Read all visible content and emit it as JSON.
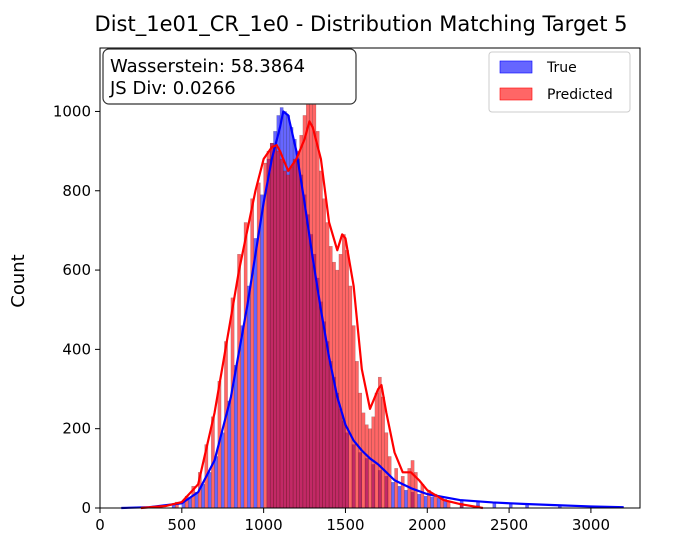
{
  "chart_data": {
    "type": "bar",
    "subtype": "overlaid histogram with KDE curves",
    "title": "Dist_1e01_CR_1e0 - Distribution Matching Target 5",
    "xlabel": "",
    "ylabel": "Count",
    "xlim": [
      0,
      3300
    ],
    "ylim": [
      0,
      1160
    ],
    "xticks": [
      0,
      500,
      1000,
      1500,
      2000,
      2500,
      3000
    ],
    "yticks": [
      0,
      200,
      400,
      600,
      800,
      1000
    ],
    "grid": false,
    "legend_position": "top-right",
    "annotation": {
      "lines": [
        "Wasserstein: 58.3864",
        "JS Div: 0.0266"
      ]
    },
    "series": [
      {
        "name": "True",
        "color": "#0000ff",
        "bin_width": 20,
        "bins": [
          [
            240,
            2
          ],
          [
            340,
            3
          ],
          [
            440,
            8
          ],
          [
            500,
            15
          ],
          [
            540,
            25
          ],
          [
            580,
            40
          ],
          [
            620,
            60
          ],
          [
            660,
            90
          ],
          [
            700,
            130
          ],
          [
            740,
            190
          ],
          [
            780,
            270
          ],
          [
            820,
            360
          ],
          [
            860,
            460
          ],
          [
            900,
            560
          ],
          [
            940,
            680
          ],
          [
            980,
            790
          ],
          [
            1020,
            880
          ],
          [
            1040,
            920
          ],
          [
            1060,
            950
          ],
          [
            1080,
            990
          ],
          [
            1100,
            1010
          ],
          [
            1120,
            1000
          ],
          [
            1140,
            990
          ],
          [
            1160,
            960
          ],
          [
            1180,
            930
          ],
          [
            1200,
            880
          ],
          [
            1220,
            840
          ],
          [
            1240,
            790
          ],
          [
            1260,
            740
          ],
          [
            1280,
            690
          ],
          [
            1300,
            640
          ],
          [
            1320,
            580
          ],
          [
            1340,
            520
          ],
          [
            1360,
            470
          ],
          [
            1380,
            420
          ],
          [
            1400,
            370
          ],
          [
            1420,
            330
          ],
          [
            1440,
            290
          ],
          [
            1460,
            250
          ],
          [
            1480,
            220
          ],
          [
            1500,
            190
          ],
          [
            1540,
            160
          ],
          [
            1580,
            140
          ],
          [
            1620,
            125
          ],
          [
            1660,
            110
          ],
          [
            1700,
            95
          ],
          [
            1740,
            80
          ],
          [
            1780,
            65
          ],
          [
            1820,
            55
          ],
          [
            1860,
            45
          ],
          [
            1900,
            40
          ],
          [
            1940,
            35
          ],
          [
            1980,
            30
          ],
          [
            2020,
            28
          ],
          [
            2060,
            25
          ],
          [
            2100,
            22
          ],
          [
            2200,
            18
          ],
          [
            2300,
            15
          ],
          [
            2400,
            12
          ],
          [
            2500,
            10
          ],
          [
            2600,
            8
          ],
          [
            2800,
            6
          ],
          [
            3000,
            4
          ],
          [
            3180,
            3
          ]
        ],
        "kde": [
          [
            130,
            0
          ],
          [
            300,
            2
          ],
          [
            500,
            12
          ],
          [
            600,
            40
          ],
          [
            700,
            120
          ],
          [
            800,
            280
          ],
          [
            900,
            510
          ],
          [
            1000,
            770
          ],
          [
            1050,
            880
          ],
          [
            1100,
            960
          ],
          [
            1120,
            1000
          ],
          [
            1150,
            990
          ],
          [
            1200,
            900
          ],
          [
            1250,
            770
          ],
          [
            1300,
            630
          ],
          [
            1350,
            500
          ],
          [
            1400,
            380
          ],
          [
            1450,
            280
          ],
          [
            1500,
            210
          ],
          [
            1550,
            170
          ],
          [
            1600,
            145
          ],
          [
            1650,
            125
          ],
          [
            1700,
            110
          ],
          [
            1750,
            90
          ],
          [
            1800,
            70
          ],
          [
            1900,
            50
          ],
          [
            2000,
            35
          ],
          [
            2200,
            20
          ],
          [
            2400,
            14
          ],
          [
            2600,
            10
          ],
          [
            2800,
            7
          ],
          [
            3000,
            4
          ],
          [
            3200,
            2
          ]
        ]
      },
      {
        "name": "Predicted",
        "color": "#ff0000",
        "bin_width": 20,
        "bins": [
          [
            240,
            2
          ],
          [
            360,
            5
          ],
          [
            460,
            15
          ],
          [
            520,
            30
          ],
          [
            560,
            55
          ],
          [
            600,
            90
          ],
          [
            640,
            160
          ],
          [
            680,
            230
          ],
          [
            720,
            320
          ],
          [
            760,
            420
          ],
          [
            800,
            530
          ],
          [
            840,
            640
          ],
          [
            880,
            720
          ],
          [
            920,
            780
          ],
          [
            960,
            820
          ],
          [
            1000,
            870
          ],
          [
            1020,
            900
          ],
          [
            1040,
            920
          ],
          [
            1060,
            910
          ],
          [
            1080,
            900
          ],
          [
            1100,
            880
          ],
          [
            1120,
            850
          ],
          [
            1140,
            840
          ],
          [
            1160,
            860
          ],
          [
            1180,
            880
          ],
          [
            1200,
            900
          ],
          [
            1220,
            940
          ],
          [
            1240,
            990
          ],
          [
            1260,
            1060
          ],
          [
            1280,
            1100
          ],
          [
            1300,
            1040
          ],
          [
            1320,
            950
          ],
          [
            1340,
            850
          ],
          [
            1360,
            780
          ],
          [
            1380,
            720
          ],
          [
            1400,
            660
          ],
          [
            1420,
            620
          ],
          [
            1440,
            600
          ],
          [
            1460,
            640
          ],
          [
            1480,
            690
          ],
          [
            1500,
            650
          ],
          [
            1520,
            560
          ],
          [
            1540,
            460
          ],
          [
            1560,
            370
          ],
          [
            1580,
            290
          ],
          [
            1600,
            240
          ],
          [
            1620,
            210
          ],
          [
            1640,
            200
          ],
          [
            1660,
            230
          ],
          [
            1680,
            290
          ],
          [
            1700,
            330
          ],
          [
            1720,
            280
          ],
          [
            1740,
            190
          ],
          [
            1760,
            130
          ],
          [
            1800,
            100
          ],
          [
            1840,
            80
          ],
          [
            1880,
            100
          ],
          [
            1900,
            120
          ],
          [
            1920,
            90
          ],
          [
            1960,
            60
          ],
          [
            2000,
            45
          ],
          [
            2040,
            35
          ],
          [
            2080,
            25
          ],
          [
            2120,
            18
          ],
          [
            2200,
            12
          ],
          [
            2300,
            6
          ]
        ],
        "kde": [
          [
            250,
            0
          ],
          [
            400,
            5
          ],
          [
            500,
            15
          ],
          [
            600,
            60
          ],
          [
            700,
            240
          ],
          [
            800,
            480
          ],
          [
            850,
            600
          ],
          [
            900,
            700
          ],
          [
            950,
            800
          ],
          [
            1000,
            880
          ],
          [
            1050,
            910
          ],
          [
            1080,
            915
          ],
          [
            1100,
            900
          ],
          [
            1150,
            850
          ],
          [
            1200,
            880
          ],
          [
            1250,
            930
          ],
          [
            1280,
            975
          ],
          [
            1300,
            960
          ],
          [
            1350,
            880
          ],
          [
            1400,
            720
          ],
          [
            1450,
            650
          ],
          [
            1480,
            690
          ],
          [
            1500,
            680
          ],
          [
            1550,
            560
          ],
          [
            1600,
            350
          ],
          [
            1650,
            250
          ],
          [
            1700,
            300
          ],
          [
            1720,
            310
          ],
          [
            1750,
            240
          ],
          [
            1800,
            140
          ],
          [
            1850,
            90
          ],
          [
            1900,
            90
          ],
          [
            1950,
            70
          ],
          [
            2000,
            45
          ],
          [
            2100,
            20
          ],
          [
            2200,
            10
          ],
          [
            2340,
            0
          ]
        ]
      }
    ]
  }
}
